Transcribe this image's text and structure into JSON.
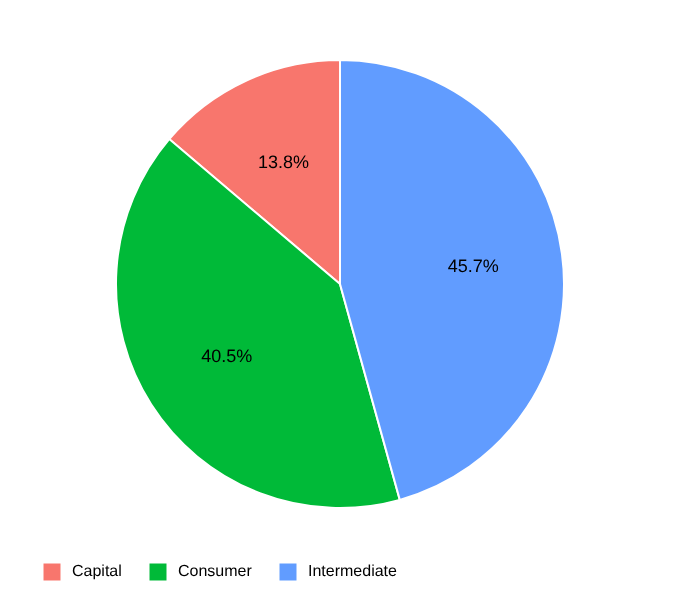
{
  "chart_data": {
    "type": "pie",
    "categories": [
      "Capital",
      "Consumer",
      "Intermediate"
    ],
    "values": [
      13.8,
      40.5,
      45.7
    ],
    "colors": [
      "#f8766d",
      "#00ba38",
      "#619cff"
    ],
    "value_labels": [
      "13.8%",
      "40.5%",
      "45.7%"
    ],
    "legend": "bottom"
  }
}
